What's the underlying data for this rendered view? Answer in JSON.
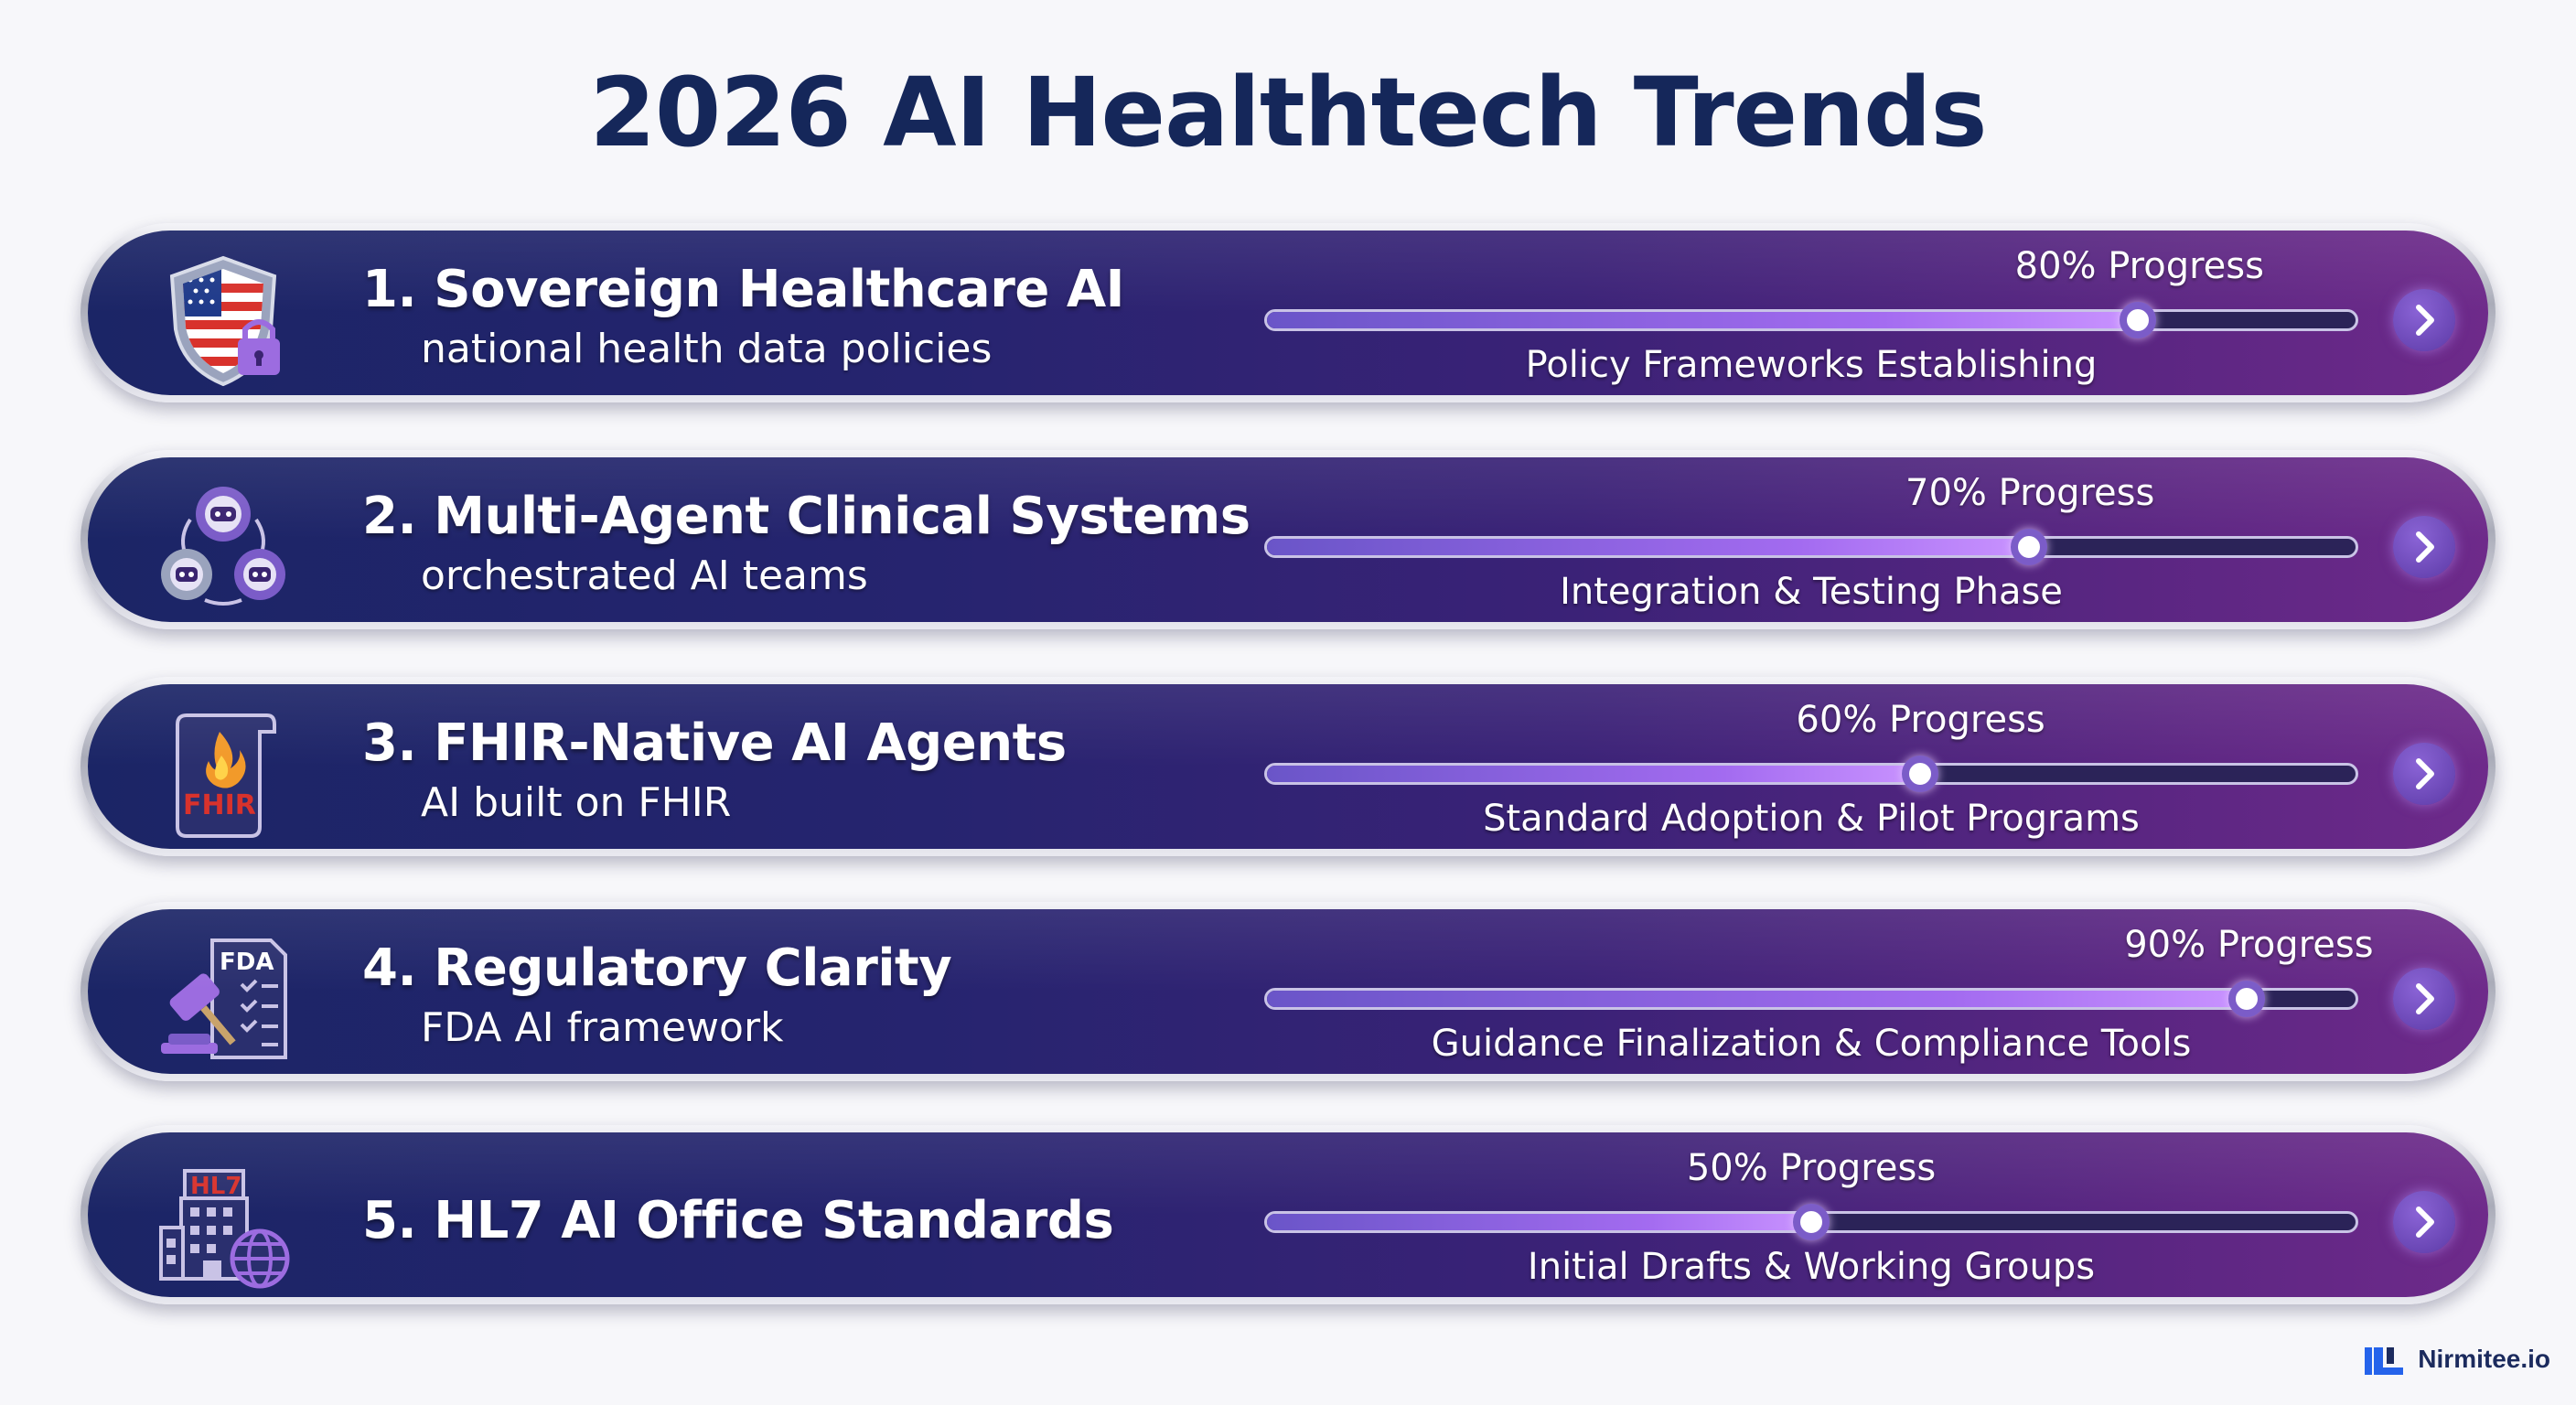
{
  "title": "2026 AI Healthtech Trends",
  "trends": [
    {
      "title": "1. Sovereign Healthcare AI",
      "subtitle": "national health data policies",
      "progress_label": "80% Progress",
      "progress": 0.8,
      "phase": "Policy Frameworks Establishing",
      "icon": "shield-flag-lock-icon"
    },
    {
      "title": "2. Multi-Agent Clinical Systems",
      "subtitle": "orchestrated AI teams",
      "progress_label": "70% Progress",
      "progress": 0.7,
      "phase": "Integration & Testing Phase",
      "icon": "robot-gears-icon"
    },
    {
      "title": "3. FHIR-Native AI Agents",
      "subtitle": "AI built on FHIR",
      "progress_label": "60% Progress",
      "progress": 0.6,
      "phase": "Standard Adoption & Pilot Programs",
      "icon": "fhir-flame-document-icon",
      "icon_text": "FHIR"
    },
    {
      "title": "4. Regulatory Clarity",
      "subtitle": "FDA AI framework",
      "progress_label": "90% Progress",
      "progress": 0.9,
      "phase": "Guidance Finalization & Compliance Tools",
      "icon": "gavel-fda-checklist-icon",
      "icon_text": "FDA"
    },
    {
      "title": "5. HL7 AI Office Standards",
      "subtitle": "",
      "progress_label": "50% Progress",
      "progress": 0.5,
      "phase": "Initial Drafts & Working Groups",
      "icon": "hl7-building-globe-icon",
      "icon_text": "HL7"
    }
  ],
  "brand": {
    "name": "Nirmitee.io",
    "icon": "nirmitee-logo-icon"
  },
  "colors": {
    "title": "#15275a",
    "card_start": "#1b2566",
    "card_end": "#6e2a8a",
    "progress_fill": "#a36bf0",
    "accent_red": "#d8322c",
    "accent_purple": "#8a63d6"
  }
}
